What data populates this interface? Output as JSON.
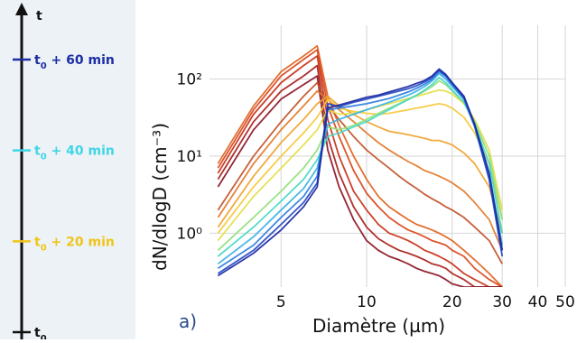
{
  "timeline": {
    "axis_label": "t",
    "marks": [
      {
        "base": "t",
        "sub": "0",
        "suffix": " + 60 min",
        "color": "#1d2ea6",
        "minutes": 60
      },
      {
        "base": "t",
        "sub": "0",
        "suffix": " + 40 min",
        "color": "#3ed6e6",
        "minutes": 40
      },
      {
        "base": "t",
        "sub": "0",
        "suffix": " + 20 min",
        "color": "#f0c419",
        "minutes": 20
      },
      {
        "base": "t",
        "sub": "0",
        "suffix": "",
        "color": "#111111",
        "minutes": 0
      }
    ]
  },
  "chart_data": {
    "type": "line",
    "panel_label": "a)",
    "xlabel": "Diamètre (µm)",
    "ylabel": "dN/dlogD (cm⁻³)",
    "xscale": "log",
    "yscale": "log",
    "xlim": [
      2.8,
      50
    ],
    "ylim": [
      0.2,
      500
    ],
    "xticks": [
      {
        "value": 5,
        "label": "5"
      },
      {
        "value": 10,
        "label": "10"
      },
      {
        "value": 20,
        "label": "20"
      },
      {
        "value": 30,
        "label": "30"
      },
      {
        "value": 40,
        "label": "40"
      },
      {
        "value": 50,
        "label": "50"
      }
    ],
    "yticks": [
      {
        "value": 1,
        "label": "10⁰"
      },
      {
        "value": 10,
        "label": "10¹"
      },
      {
        "value": 100,
        "label": "10²"
      }
    ],
    "grid": true,
    "x": [
      3,
      4,
      5,
      6,
      6.7,
      7.3,
      8,
      9,
      10,
      11,
      12,
      13,
      14,
      15,
      16,
      17,
      18,
      19,
      20,
      22,
      24,
      27,
      30
    ],
    "series": [
      {
        "color": "#e0641e",
        "values": [
          8.0,
          45,
          125,
          200,
          270,
          60,
          25,
          10,
          5,
          3,
          2.2,
          1.8,
          1.5,
          1.3,
          1.2,
          1.1,
          1.0,
          0.9,
          0.8,
          0.6,
          0.45,
          0.3,
          0.2
        ]
      },
      {
        "color": "#d9471b",
        "values": [
          7.0,
          40,
          110,
          180,
          240,
          45,
          18,
          6.5,
          3.3,
          2.2,
          1.6,
          1.3,
          1.1,
          1.0,
          0.9,
          0.8,
          0.75,
          0.7,
          0.6,
          0.5,
          0.35,
          0.25,
          0.2
        ]
      },
      {
        "color": "#c8321a",
        "values": [
          6.0,
          35,
          90,
          150,
          200,
          30,
          10,
          3.5,
          2.0,
          1.3,
          1.0,
          0.9,
          0.8,
          0.7,
          0.6,
          0.55,
          0.5,
          0.45,
          0.4,
          0.3,
          0.25,
          0.2,
          0.2
        ]
      },
      {
        "color": "#a8201c",
        "values": [
          5.0,
          28,
          70,
          110,
          150,
          18,
          6,
          2.2,
          1.2,
          0.85,
          0.7,
          0.6,
          0.55,
          0.5,
          0.45,
          0.4,
          0.38,
          0.35,
          0.3,
          0.25,
          0.2,
          0.2,
          0.2
        ]
      },
      {
        "color": "#8a1523",
        "values": [
          4.0,
          22,
          55,
          85,
          110,
          12,
          4,
          1.5,
          0.8,
          0.6,
          0.5,
          0.45,
          0.4,
          0.35,
          0.32,
          0.3,
          0.28,
          0.25,
          0.22,
          0.2,
          0.2,
          0.2,
          0.2
        ]
      },
      {
        "color": "#c0522a",
        "values": [
          2.0,
          10,
          28,
          60,
          90,
          45,
          30,
          18,
          12,
          9,
          7,
          5.5,
          4.5,
          3.8,
          3.2,
          2.8,
          2.5,
          2.2,
          2.0,
          1.6,
          1.2,
          0.8,
          0.4
        ]
      },
      {
        "color": "#e27a2a",
        "values": [
          1.6,
          8,
          22,
          45,
          70,
          55,
          40,
          28,
          20,
          15,
          12,
          10,
          8.5,
          7.5,
          6.5,
          6.0,
          5.5,
          5.0,
          4.5,
          3.5,
          2.5,
          1.5,
          0.6
        ]
      },
      {
        "color": "#f0a330",
        "values": [
          1.2,
          5.5,
          15,
          30,
          48,
          60,
          45,
          35,
          28,
          24,
          21,
          20,
          19,
          18,
          17,
          16,
          16,
          15,
          14,
          11,
          8,
          4,
          1.0
        ]
      },
      {
        "color": "#f6c93a",
        "values": [
          1.0,
          4.0,
          10,
          20,
          32,
          55,
          42,
          38,
          36,
          35,
          36,
          38,
          40,
          42,
          44,
          46,
          48,
          46,
          42,
          32,
          20,
          8,
          1.5
        ]
      },
      {
        "color": "#e3de4a",
        "values": [
          0.8,
          3.0,
          7,
          14,
          22,
          40,
          35,
          36,
          40,
          44,
          48,
          52,
          56,
          60,
          64,
          68,
          72,
          70,
          64,
          48,
          30,
          12,
          2.0
        ]
      },
      {
        "color": "#8fe07a",
        "values": [
          0.6,
          1.6,
          3.5,
          7,
          12,
          24,
          22,
          25,
          30,
          36,
          42,
          48,
          55,
          62,
          70,
          80,
          95,
          85,
          70,
          50,
          28,
          10,
          1.5
        ]
      },
      {
        "color": "#46d8c6",
        "values": [
          0.5,
          1.2,
          2.6,
          5,
          9,
          18,
          20,
          24,
          28,
          34,
          40,
          47,
          54,
          62,
          72,
          85,
          105,
          90,
          72,
          50,
          26,
          8,
          1.0
        ]
      },
      {
        "color": "#3ab2e6",
        "values": [
          0.4,
          0.9,
          2.0,
          3.8,
          7,
          26,
          30,
          35,
          40,
          45,
          50,
          56,
          62,
          70,
          80,
          95,
          118,
          100,
          80,
          55,
          26,
          6,
          0.7
        ]
      },
      {
        "color": "#2e7fe0",
        "values": [
          0.35,
          0.7,
          1.6,
          3.0,
          5.5,
          40,
          42,
          45,
          48,
          52,
          56,
          62,
          68,
          76,
          86,
          100,
          125,
          108,
          85,
          55,
          24,
          5,
          0.6
        ]
      },
      {
        "color": "#2448c6",
        "values": [
          0.3,
          0.6,
          1.3,
          2.5,
          4.5,
          48,
          44,
          50,
          55,
          60,
          65,
          70,
          75,
          82,
          92,
          105,
          130,
          112,
          88,
          58,
          25,
          5,
          0.5
        ]
      },
      {
        "color": "#1c2aa0",
        "values": [
          0.28,
          0.55,
          1.1,
          2.2,
          4.0,
          42,
          46,
          52,
          58,
          62,
          68,
          74,
          80,
          88,
          96,
          110,
          135,
          115,
          90,
          60,
          26,
          6,
          0.6
        ]
      }
    ]
  }
}
